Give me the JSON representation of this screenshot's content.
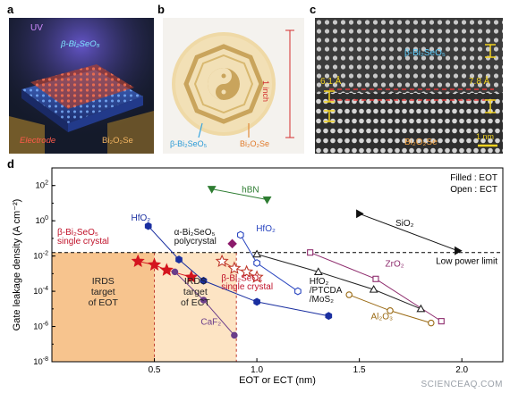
{
  "panels": {
    "a": {
      "letter": "a",
      "uv_label": "UV",
      "top_label": "β-Bi₂SeO₅",
      "left_label": "Electrode",
      "right_label": "Bi₂O₂Se"
    },
    "b": {
      "letter": "b",
      "scale_label": "1 inch",
      "left_label": "β-Bi₂SeO₅",
      "right_label": "Bi₂O₂Se"
    },
    "c": {
      "letter": "c",
      "top_label": "β-Bi₂SeO₅",
      "bottom_label": "Bi₂O₂Se",
      "left_spacing": "6.1 Å",
      "right_spacing": "7.8 Å",
      "scalebar": "1 nm"
    },
    "d": {
      "letter": "d"
    }
  },
  "chart_data": {
    "type": "scatter",
    "xlabel": "EOT or ECT (nm)",
    "ylabel": "Gate leakage density (A cm⁻²)",
    "xlim": [
      0,
      2.2
    ],
    "ylim_log10": [
      -8,
      3
    ],
    "x_ticks": [
      {
        "value": 0.5,
        "label": "0.5"
      },
      {
        "value": 1.0,
        "label": "1.0"
      },
      {
        "value": 1.5,
        "label": "1.5"
      },
      {
        "value": 2.0,
        "label": "2.0"
      }
    ],
    "y_ticks": [
      {
        "exp": 2,
        "base": "10",
        "sup": "2"
      },
      {
        "exp": 0,
        "base": "10",
        "sup": "0"
      },
      {
        "exp": -2,
        "base": "10",
        "sup": "-2"
      },
      {
        "exp": -4,
        "base": "10",
        "sup": "-4"
      },
      {
        "exp": -6,
        "base": "10",
        "sup": "-6"
      },
      {
        "exp": -8,
        "base": "10",
        "sup": "-8"
      }
    ],
    "legend_note": [
      "Filled : EOT",
      "Open : ECT"
    ],
    "low_power_limit": {
      "log10": -1.8,
      "label": "Low power limit"
    },
    "irds": {
      "eot_region": {
        "x_max": 0.5,
        "label": [
          "IRDS",
          "target",
          "of EOT"
        ]
      },
      "ect_region": {
        "x_max": 0.9,
        "label": [
          "IRDS",
          "target",
          "of ECT"
        ]
      }
    },
    "series": [
      {
        "name": "hBN",
        "color": "#2e7d32",
        "marker": "triangle-down",
        "filled": true,
        "points": [
          {
            "x": 0.78,
            "y": 1.8
          },
          {
            "x": 1.05,
            "y": 1.2
          }
        ]
      },
      {
        "name": "SiO₂",
        "color": "#111111",
        "marker": "triangle-right",
        "filled": true,
        "points": [
          {
            "x": 1.5,
            "y": 0.4
          },
          {
            "x": 1.98,
            "y": -1.7
          }
        ]
      },
      {
        "name": "HfO₂",
        "color": "#1a2fa0",
        "marker": "hexagon",
        "filled": true,
        "points": [
          {
            "x": 0.47,
            "y": -0.3
          },
          {
            "x": 0.62,
            "y": -2.2
          },
          {
            "x": 0.74,
            "y": -3.4
          },
          {
            "x": 1.0,
            "y": -4.6
          },
          {
            "x": 1.35,
            "y": -5.4
          }
        ]
      },
      {
        "name": "HfO₂",
        "color": "#2a46c0",
        "marker": "hexagon",
        "filled": false,
        "points": [
          {
            "x": 0.92,
            "y": -0.8
          },
          {
            "x": 1.0,
            "y": -2.4
          },
          {
            "x": 1.2,
            "y": -4.0
          }
        ]
      },
      {
        "name": "CaF₂",
        "color": "#6a3d8a",
        "marker": "circle",
        "filled": true,
        "points": [
          {
            "x": 0.6,
            "y": -2.9
          },
          {
            "x": 0.74,
            "y": -4.5
          },
          {
            "x": 0.89,
            "y": -6.5
          }
        ]
      },
      {
        "name": "α-Bi₂SeO₅ polycrystal",
        "color": "#8b1a6b",
        "marker": "diamond",
        "filled": true,
        "points": [
          {
            "x": 0.88,
            "y": -1.3
          }
        ]
      },
      {
        "name": "β-Bi₂SeO₅ single crystal",
        "color": "#d4141e",
        "marker": "star",
        "filled": true,
        "points": [
          {
            "x": 0.42,
            "y": -2.3
          },
          {
            "x": 0.5,
            "y": -2.5
          },
          {
            "x": 0.56,
            "y": -2.8
          },
          {
            "x": 0.68,
            "y": -3.2
          }
        ]
      },
      {
        "name": "β-Bi₂SeO₅ single crystal",
        "color": "#c0392b",
        "marker": "star",
        "filled": false,
        "points": [
          {
            "x": 0.83,
            "y": -2.3
          },
          {
            "x": 0.89,
            "y": -2.7
          },
          {
            "x": 0.95,
            "y": -2.9
          },
          {
            "x": 1.0,
            "y": -3.2
          }
        ]
      },
      {
        "name": "HfO₂ /PTCDA /MoS₂",
        "color": "#222222",
        "marker": "triangle-up",
        "filled": false,
        "points": [
          {
            "x": 1.0,
            "y": -1.9
          },
          {
            "x": 1.3,
            "y": -2.9
          },
          {
            "x": 1.57,
            "y": -3.9
          },
          {
            "x": 1.8,
            "y": -5.0
          }
        ]
      },
      {
        "name": "ZrO₂",
        "color": "#8e2c6d",
        "marker": "square",
        "filled": false,
        "points": [
          {
            "x": 1.26,
            "y": -1.8
          },
          {
            "x": 1.58,
            "y": -3.3
          },
          {
            "x": 1.9,
            "y": -5.7
          }
        ]
      },
      {
        "name": "Al₂O₃",
        "color": "#9a6a14",
        "marker": "circle",
        "filled": false,
        "points": [
          {
            "x": 1.45,
            "y": -4.2
          },
          {
            "x": 1.65,
            "y": -5.1
          },
          {
            "x": 1.85,
            "y": -5.8
          }
        ]
      }
    ],
    "series_labels": [
      {
        "text": "hBN",
        "x": 0.9,
        "y": 1.6,
        "color": "#2e7d32"
      },
      {
        "text": "SiO₂",
        "x": 1.65,
        "y": -0.3,
        "color": "#111111"
      },
      {
        "text": "HfO₂",
        "x": 0.36,
        "y": 0.0,
        "color": "#1a2fa0"
      },
      {
        "text": "HfO₂",
        "x": 0.97,
        "y": -0.6,
        "color": "#2a46c0"
      },
      {
        "text": "CaF₂",
        "x": 0.7,
        "y": -5.9,
        "color": "#6a3d8a"
      },
      {
        "text": "α-Bi₂SeO₅",
        "x": 0.57,
        "y": -0.8,
        "color": "#111111"
      },
      {
        "text": "polycrystal",
        "x": 0.57,
        "y": -1.3,
        "color": "#111111"
      },
      {
        "text": "β-Bi₂SeO₅",
        "x": 0.0,
        "y": -0.8,
        "color": "#c0122a"
      },
      {
        "text": "single crystal",
        "x": 0.0,
        "y": -1.3,
        "color": "#c0122a"
      },
      {
        "text": "β-Bi₂SeO₅",
        "x": 0.8,
        "y": -3.4,
        "color": "#c0122a"
      },
      {
        "text": "single crystal",
        "x": 0.8,
        "y": -3.9,
        "color": "#c0122a"
      },
      {
        "text": "HfO₂",
        "x": 1.23,
        "y": -3.6,
        "color": "#111111"
      },
      {
        "text": "/PTCDA",
        "x": 1.23,
        "y": -4.1,
        "color": "#111111"
      },
      {
        "text": "/MoS₂",
        "x": 1.23,
        "y": -4.6,
        "color": "#111111"
      },
      {
        "text": "ZrO₂",
        "x": 1.6,
        "y": -2.6,
        "color": "#8e2c6d"
      },
      {
        "text": "Al₂O₃",
        "x": 1.53,
        "y": -5.6,
        "color": "#9a6a14"
      }
    ]
  },
  "credit": "SCIENCEAQ.COM"
}
